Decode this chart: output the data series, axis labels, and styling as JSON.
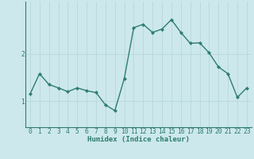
{
  "xlabel": "Humidex (Indice chaleur)",
  "ylabel": "",
  "background_color": "#cce8ec",
  "plot_bg_color": "#cce8ec",
  "line_color": "#2e7d6e",
  "marker_color": "#2e7d6e",
  "grid_color": "#b8d8dc",
  "axis_color": "#2e7d6e",
  "x_values": [
    0,
    1,
    2,
    3,
    4,
    5,
    6,
    7,
    8,
    9,
    10,
    11,
    12,
    13,
    14,
    15,
    16,
    17,
    18,
    19,
    20,
    21,
    22,
    23
  ],
  "y_values": [
    1.15,
    1.58,
    1.35,
    1.28,
    1.2,
    1.28,
    1.22,
    1.18,
    0.92,
    0.8,
    1.48,
    2.55,
    2.62,
    2.45,
    2.52,
    2.72,
    2.45,
    2.22,
    2.23,
    2.02,
    1.72,
    1.58,
    1.08,
    1.28
  ],
  "yticks": [
    1,
    2
  ],
  "ylim": [
    0.45,
    3.1
  ],
  "xlim": [
    -0.5,
    23.5
  ],
  "xtick_labels": [
    "0",
    "1",
    "2",
    "3",
    "4",
    "5",
    "6",
    "7",
    "8",
    "9",
    "10",
    "11",
    "12",
    "13",
    "14",
    "15",
    "16",
    "17",
    "18",
    "19",
    "20",
    "21",
    "22",
    "23"
  ],
  "label_fontsize": 6.5,
  "tick_fontsize": 5.8,
  "marker_size": 2.2,
  "line_width": 1.0
}
